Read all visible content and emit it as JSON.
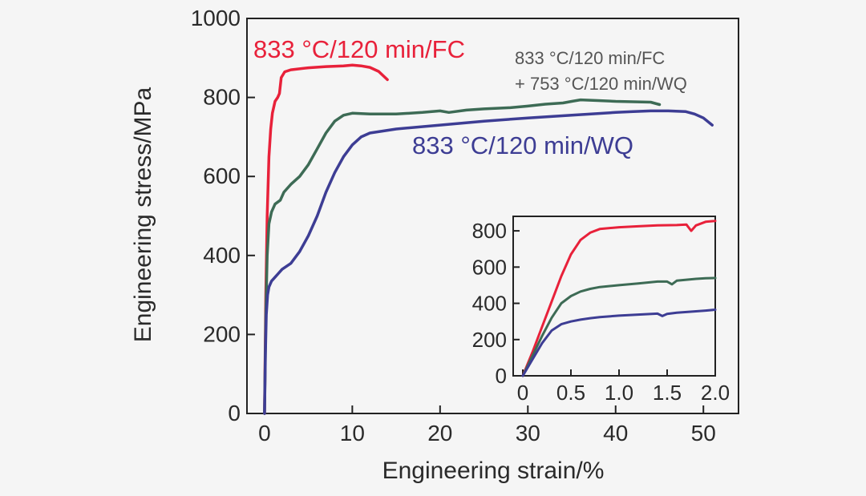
{
  "chart_data": [
    {
      "id": "main",
      "type": "line",
      "xlabel": "Engineering strain/%",
      "ylabel": "Engineering stress/MPa",
      "xlim": [
        -2,
        54
      ],
      "ylim": [
        0,
        1000
      ],
      "xticks": [
        0,
        10,
        20,
        30,
        40,
        50
      ],
      "yticks": [
        0,
        200,
        400,
        600,
        800,
        1000
      ],
      "grid": false,
      "series": [
        {
          "name": "833 °C/120 min/FC",
          "color": "#e8213a",
          "x": [
            0.0,
            0.15,
            0.3,
            0.5,
            0.7,
            0.9,
            1.2,
            1.5,
            1.7,
            1.9,
            2.3,
            3,
            5,
            7,
            9,
            10,
            11,
            12,
            13,
            14
          ],
          "y": [
            0,
            300,
            500,
            650,
            720,
            760,
            790,
            800,
            810,
            850,
            865,
            870,
            875,
            878,
            880,
            882,
            880,
            876,
            866,
            845
          ]
        },
        {
          "name": "833 °C/120 min/FC\n+ 753 °C/120 min/WQ",
          "color": "#3d6b55",
          "x": [
            0.0,
            0.15,
            0.3,
            0.5,
            0.8,
            1.2,
            1.8,
            2.2,
            3,
            4,
            5,
            6,
            7,
            8,
            9,
            10,
            12,
            15,
            18,
            20,
            21,
            23,
            25,
            28,
            30,
            32,
            34,
            35,
            36,
            38,
            40,
            42,
            44,
            45
          ],
          "y": [
            0,
            250,
            400,
            480,
            510,
            530,
            540,
            560,
            580,
            600,
            630,
            670,
            710,
            740,
            755,
            760,
            758,
            758,
            762,
            766,
            762,
            768,
            771,
            774,
            778,
            783,
            786,
            790,
            794,
            792,
            790,
            789,
            788,
            782
          ]
        },
        {
          "name": "833 °C/120 min/WQ",
          "color": "#3d3d94",
          "x": [
            0.0,
            0.1,
            0.2,
            0.35,
            0.5,
            0.8,
            1.2,
            1.6,
            2,
            3,
            4,
            5,
            6,
            7,
            8,
            9,
            10,
            11,
            12,
            15,
            20,
            25,
            30,
            35,
            40,
            42,
            44,
            46,
            48,
            49,
            50,
            51
          ],
          "y": [
            0,
            150,
            250,
            300,
            320,
            335,
            345,
            355,
            365,
            380,
            410,
            450,
            500,
            560,
            610,
            650,
            680,
            700,
            710,
            720,
            730,
            740,
            748,
            755,
            762,
            764,
            766,
            766,
            764,
            758,
            748,
            730
          ]
        }
      ],
      "annotations": [
        {
          "text": "833 °C/120 min/FC",
          "series": 0
        },
        {
          "text": "833 °C/120 min/FC",
          "series": 1
        },
        {
          "text": "+ 753 °C/120 min/WQ",
          "series": 1
        },
        {
          "text": "833 °C/120 min/WQ",
          "series": 2
        }
      ]
    },
    {
      "id": "inset",
      "type": "line",
      "xlim": [
        -0.1,
        2.0
      ],
      "ylim": [
        0,
        880
      ],
      "xticks": [
        0,
        0.5,
        1.0,
        1.5,
        2.0
      ],
      "xticklabels": [
        "0",
        "0.5",
        "1.0",
        "1.5",
        "2.0"
      ],
      "yticks": [
        0,
        200,
        400,
        600,
        800
      ],
      "grid": false,
      "series": [
        {
          "color": "#e8213a",
          "x": [
            0,
            0.1,
            0.2,
            0.3,
            0.4,
            0.5,
            0.6,
            0.7,
            0.8,
            1.0,
            1.2,
            1.4,
            1.6,
            1.7,
            1.75,
            1.8,
            1.9,
            2.0
          ],
          "y": [
            0,
            130,
            270,
            410,
            550,
            670,
            750,
            790,
            810,
            820,
            825,
            830,
            832,
            835,
            800,
            830,
            850,
            855
          ]
        },
        {
          "color": "#3d6b55",
          "x": [
            0,
            0.1,
            0.2,
            0.3,
            0.4,
            0.5,
            0.6,
            0.7,
            0.8,
            1.0,
            1.2,
            1.4,
            1.5,
            1.55,
            1.6,
            1.7,
            1.8,
            1.9,
            2.0
          ],
          "y": [
            0,
            110,
            220,
            320,
            400,
            440,
            465,
            480,
            490,
            500,
            510,
            520,
            520,
            505,
            525,
            530,
            535,
            538,
            540
          ]
        },
        {
          "color": "#3d3d94",
          "x": [
            0,
            0.1,
            0.2,
            0.3,
            0.4,
            0.5,
            0.6,
            0.7,
            0.8,
            1.0,
            1.2,
            1.4,
            1.45,
            1.5,
            1.6,
            1.7,
            1.8,
            1.9,
            2.0
          ],
          "y": [
            0,
            90,
            180,
            250,
            285,
            300,
            310,
            318,
            324,
            332,
            338,
            343,
            330,
            342,
            348,
            352,
            356,
            360,
            365
          ]
        }
      ]
    }
  ]
}
